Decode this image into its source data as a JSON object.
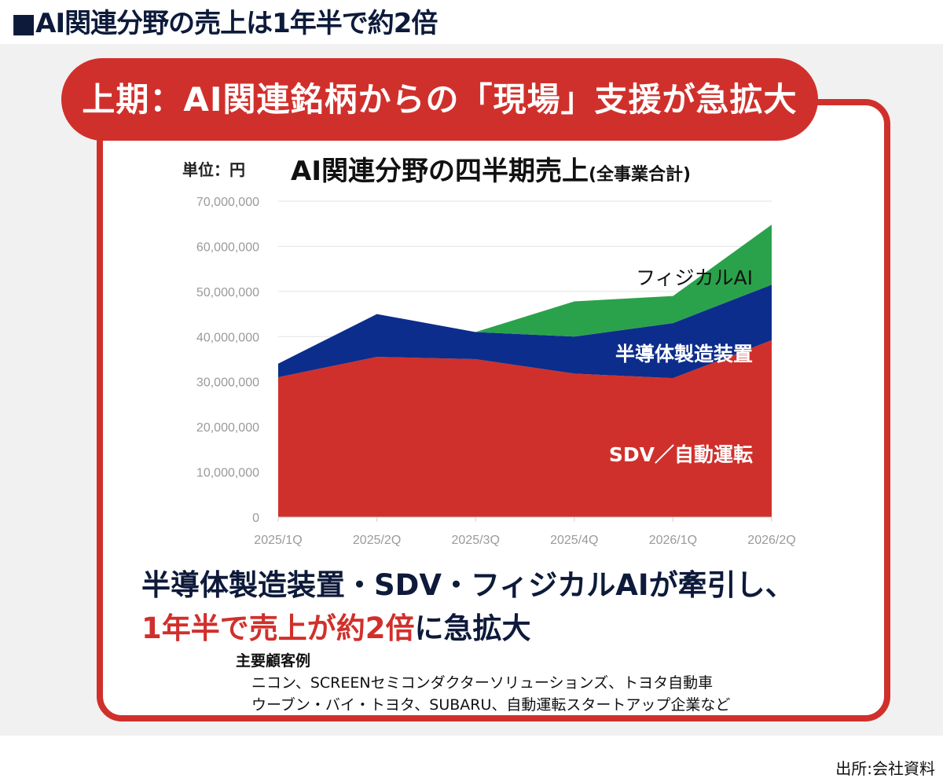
{
  "page_title": "■AI関連分野の売上は1年半で約2倍",
  "banner": "上期：AI関連銘柄からの「現場」支援が急拡大",
  "unit_label": "単位：円",
  "chart_data": {
    "type": "area",
    "title": "AI関連分野の四半期売上",
    "subtitle": "(全事業合計)",
    "categories": [
      "2025/1Q",
      "2025/2Q",
      "2025/3Q",
      "2025/4Q",
      "2026/1Q",
      "2026/2Q"
    ],
    "ylim": [
      0,
      70000000
    ],
    "yticks": [
      "0",
      "10,000,000",
      "20,000,000",
      "30,000,000",
      "40,000,000",
      "50,000,000",
      "60,000,000",
      "70,000,000"
    ],
    "stacked": true,
    "grid": true,
    "series": [
      {
        "name": "SDV／自動運転",
        "color": "#d0302c",
        "label_color": "#ffffff",
        "values": [
          31000000,
          35500000,
          35000000,
          31800000,
          30800000,
          39200000
        ]
      },
      {
        "name": "半導体製造装置",
        "color": "#0d2d8c",
        "label_color": "#ffffff",
        "values": [
          3000000,
          9500000,
          6000000,
          8200000,
          12200000,
          12300000
        ]
      },
      {
        "name": "フィジカルAI",
        "color": "#2aa24b",
        "label_color": "#111111",
        "values": [
          0,
          0,
          0,
          7800000,
          6000000,
          13300000
        ]
      }
    ]
  },
  "summary": {
    "line1": "半導体製造装置・SDV・フィジカルAIが牽引し、",
    "line2_accent": "1年半で売上が約2倍",
    "line2_rest": "に急拡大"
  },
  "customers": {
    "heading": "主要顧客例",
    "line1": "ニコン、SCREENセミコンダクターソリューションズ、トヨタ自動車",
    "line2": "ウーブン・バイ・トヨタ、SUBARU、自動運転スタートアップ企業など"
  },
  "source": "出所:会社資料"
}
